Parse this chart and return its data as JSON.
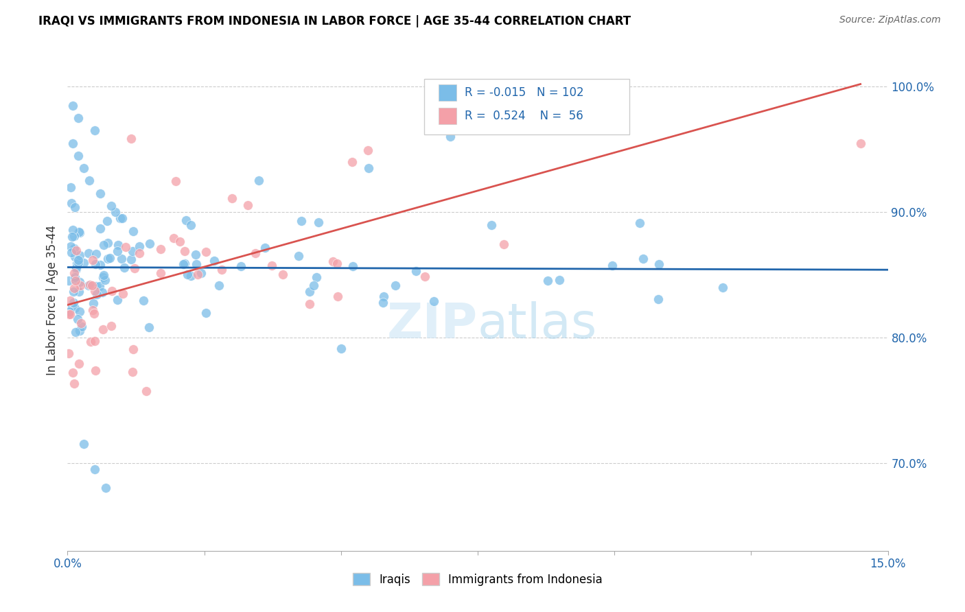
{
  "title": "IRAQI VS IMMIGRANTS FROM INDONESIA IN LABOR FORCE | AGE 35-44 CORRELATION CHART",
  "source": "Source: ZipAtlas.com",
  "ylabel": "In Labor Force | Age 35-44",
  "xlim": [
    0.0,
    0.15
  ],
  "ylim": [
    0.63,
    1.03
  ],
  "watermark": "ZIPatlas",
  "legend_R_blue": "-0.015",
  "legend_N_blue": "102",
  "legend_R_pink": "0.524",
  "legend_N_pink": "56",
  "blue_color": "#7bbde8",
  "pink_color": "#f4a0a8",
  "blue_line_color": "#2166ac",
  "pink_line_color": "#d9534f",
  "grid_color": "#cccccc",
  "yticks": [
    0.7,
    0.8,
    0.9,
    1.0
  ],
  "ytick_labels": [
    "70.0%",
    "80.0%",
    "90.0%",
    "100.0%"
  ],
  "xtick_show": [
    0.0,
    0.15
  ],
  "xtick_labels": [
    "0.0%",
    "15.0%"
  ],
  "blue_line_x": [
    0.0,
    0.15
  ],
  "blue_line_y": [
    0.856,
    0.854
  ],
  "pink_line_x": [
    0.0,
    0.145
  ],
  "pink_line_y": [
    0.826,
    1.002
  ]
}
